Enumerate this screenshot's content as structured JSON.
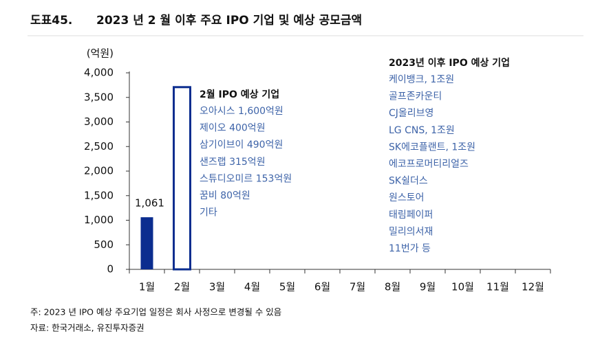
{
  "header": {
    "label": "도표45.",
    "title": "2023 년 2 월 이후 주요 IPO 기업 및 예상 공모금액"
  },
  "chart_data": {
    "type": "bar",
    "y_unit": "(억원)",
    "categories": [
      "1월",
      "2월",
      "3월",
      "4월",
      "5월",
      "6월",
      "7월",
      "8월",
      "9월",
      "10월",
      "11월",
      "12월"
    ],
    "values": [
      1061,
      3730,
      null,
      null,
      null,
      null,
      null,
      null,
      null,
      null,
      null,
      null
    ],
    "value_labels": [
      "1,061",
      null,
      null,
      null,
      null,
      null,
      null,
      null,
      null,
      null,
      null,
      null
    ],
    "bar_styles": [
      "filled",
      "outline",
      null,
      null,
      null,
      null,
      null,
      null,
      null,
      null,
      null,
      null
    ],
    "color": "#0b2d8f",
    "ylim": [
      0,
      4000
    ],
    "yticks": [
      0,
      500,
      {
        "value": 1000,
        "label": "1,000"
      },
      {
        "value": 1500,
        "label": "1,500"
      },
      {
        "value": 2000,
        "label": "2,000"
      },
      {
        "value": 2500,
        "label": "2,500"
      },
      {
        "value": 3000,
        "label": "3,000"
      },
      {
        "value": 3500,
        "label": "3,500"
      },
      {
        "value": 4000,
        "label": "4,000"
      }
    ],
    "annotations": [
      {
        "title": "2월 IPO 예상 기업",
        "items": [
          "오아시스 1,600억원",
          "제이오 400억원",
          "삼기이브이 490억원",
          "샌즈랩 315억원",
          "스튜디오미르 153억원",
          "꿈비 80억원",
          "기타"
        ]
      },
      {
        "title": "2023년 이후 IPO 예상 기업",
        "items": [
          "케이뱅크, 1조원",
          "골프존카운티",
          "CJ올리브영",
          "LG CNS, 1조원",
          "SK에코플랜트, 1조원",
          "에코프로머티리얼즈",
          "SK쉴더스",
          "원스토어",
          "태림페이퍼",
          "밀리의서재",
          "11번가 등"
        ]
      }
    ]
  },
  "footer": {
    "note": "주: 2023 년 IPO 예상 주요기업 일정은 회사 사정으로 변경될 수 있음",
    "source": "자료: 한국거래소, 유진투자증권"
  }
}
